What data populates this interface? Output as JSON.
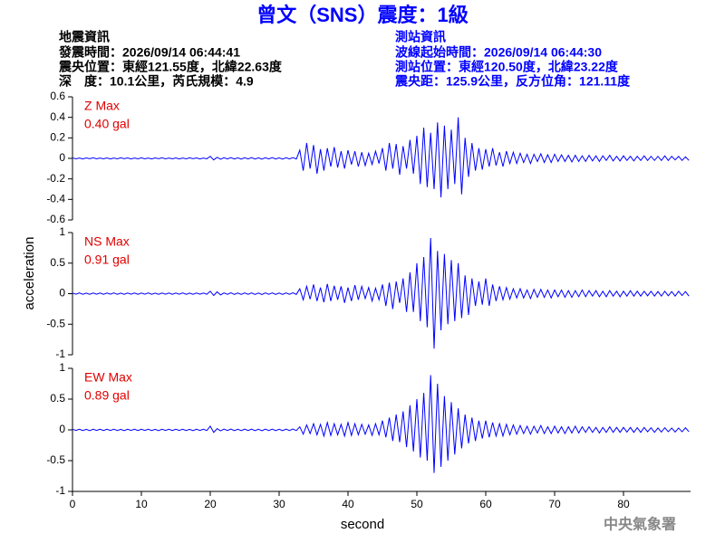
{
  "header": {
    "title": "曾文（SNS）震度：1級",
    "left": [
      "地震資訊",
      "發震時間：2026/09/14 06:44:41",
      "震央位置：東經121.55度，北緯22.63度",
      "深　度：10.1公里，芮氏規模：4.9"
    ],
    "right": [
      "測站資訊",
      "波線起始時間：2026/09/14 06:44:30",
      "測站位置：東經120.50度，北緯23.22度",
      "震央距：125.9公里，反方位角：121.11度"
    ],
    "footer": "中央氣象署"
  },
  "chart_data": {
    "type": "line",
    "color": "#0000ff",
    "xlabel": "second",
    "ylabel": "acceleration",
    "xlim": [
      0,
      90
    ],
    "xticks": [
      0,
      10,
      20,
      30,
      40,
      50,
      60,
      70,
      80
    ],
    "x": [
      0,
      0.5,
      1,
      1.5,
      2,
      2.5,
      3,
      3.5,
      4,
      4.5,
      5,
      5.5,
      6,
      6.5,
      7,
      7.5,
      8,
      8.5,
      9,
      9.5,
      10,
      10.5,
      11,
      11.5,
      12,
      12.5,
      13,
      13.5,
      14,
      14.5,
      15,
      15.5,
      16,
      16.5,
      17,
      17.5,
      18,
      18.5,
      19,
      19.5,
      20,
      20.5,
      21,
      21.5,
      22,
      22.5,
      23,
      23.5,
      24,
      24.5,
      25,
      25.5,
      26,
      26.5,
      27,
      27.5,
      28,
      28.5,
      29,
      29.5,
      30,
      30.5,
      31,
      31.5,
      32,
      32.5,
      33,
      33.5,
      34,
      34.5,
      35,
      35.5,
      36,
      36.5,
      37,
      37.5,
      38,
      38.5,
      39,
      39.5,
      40,
      40.5,
      41,
      41.5,
      42,
      42.5,
      43,
      43.5,
      44,
      44.5,
      45,
      45.5,
      46,
      46.5,
      47,
      47.5,
      48,
      48.5,
      49,
      49.5,
      50,
      50.5,
      51,
      51.5,
      52,
      52.5,
      53,
      53.5,
      54,
      54.5,
      55,
      55.5,
      56,
      56.5,
      57,
      57.5,
      58,
      58.5,
      59,
      59.5,
      60,
      60.5,
      61,
      61.5,
      62,
      62.5,
      63,
      63.5,
      64,
      64.5,
      65,
      65.5,
      66,
      66.5,
      67,
      67.5,
      68,
      68.5,
      69,
      69.5,
      70,
      70.5,
      71,
      71.5,
      72,
      72.5,
      73,
      73.5,
      74,
      74.5,
      75,
      75.5,
      76,
      76.5,
      77,
      77.5,
      78,
      78.5,
      79,
      79.5,
      80,
      80.5,
      81,
      81.5,
      82,
      82.5,
      83,
      83.5,
      84,
      84.5,
      85,
      85.5,
      86,
      86.5,
      87,
      87.5,
      88,
      88.5,
      89,
      89.5
    ],
    "series": [
      {
        "name": "Z Max",
        "max": "0.40 gal",
        "ylim": [
          -0.6,
          0.6
        ],
        "yticks": [
          -0.6,
          -0.4,
          -0.2,
          0,
          0.2,
          0.4,
          0.6
        ],
        "values": [
          0.005,
          -0.004,
          0.003,
          -0.005,
          0.004,
          -0.003,
          0.005,
          -0.004,
          0.003,
          -0.004,
          0.004,
          -0.005,
          0.003,
          -0.004,
          0.005,
          -0.003,
          0.004,
          -0.005,
          0.003,
          -0.004,
          0.005,
          -0.004,
          0.003,
          -0.005,
          0.004,
          -0.003,
          0.005,
          -0.004,
          0.003,
          -0.004,
          0.004,
          -0.005,
          0.003,
          -0.004,
          0.005,
          -0.003,
          0.004,
          -0.005,
          0.003,
          -0.004,
          0.02,
          -0.015,
          0.01,
          -0.008,
          0.006,
          -0.005,
          0.007,
          -0.006,
          0.005,
          -0.007,
          0.006,
          -0.005,
          0.007,
          -0.006,
          0.005,
          -0.007,
          0.006,
          -0.005,
          0.007,
          -0.006,
          0.005,
          -0.007,
          0.006,
          -0.005,
          0.007,
          -0.006,
          0.08,
          -0.12,
          0.15,
          -0.1,
          0.13,
          -0.15,
          0.09,
          -0.12,
          0.1,
          -0.08,
          0.11,
          -0.09,
          0.07,
          -0.1,
          0.08,
          -0.06,
          0.07,
          -0.08,
          0.06,
          -0.07,
          0.05,
          -0.06,
          0.07,
          -0.05,
          0.1,
          -0.12,
          0.15,
          -0.1,
          0.14,
          -0.16,
          0.12,
          -0.1,
          0.18,
          -0.15,
          0.22,
          -0.25,
          0.3,
          -0.28,
          0.25,
          -0.3,
          0.35,
          -0.38,
          0.32,
          -0.3,
          0.28,
          -0.25,
          0.4,
          -0.35,
          0.2,
          -0.18,
          0.15,
          -0.12,
          0.1,
          -0.11,
          0.09,
          -0.08,
          0.1,
          -0.07,
          0.06,
          -0.08,
          0.07,
          -0.05,
          0.06,
          -0.05,
          0.05,
          -0.04,
          0.04,
          -0.05,
          0.04,
          -0.03,
          0.045,
          -0.04,
          0.035,
          -0.04,
          0.04,
          -0.03,
          0.035,
          -0.03,
          0.03,
          -0.035,
          0.03,
          -0.03,
          0.025,
          -0.03,
          0.03,
          -0.025,
          0.025,
          -0.03,
          0.025,
          -0.02,
          0.03,
          -0.025,
          0.02,
          -0.025,
          0.025,
          -0.02,
          0.02,
          -0.025,
          0.02,
          -0.02,
          0.025,
          -0.02,
          0.02,
          -0.02,
          0.02,
          -0.02,
          0.025,
          -0.02,
          0.02,
          -0.015,
          0.02,
          -0.02,
          0.015,
          -0.02
        ]
      },
      {
        "name": "NS Max",
        "max": "0.91 gal",
        "ylim": [
          -1,
          1
        ],
        "yticks": [
          -1,
          -0.5,
          0,
          0.5,
          1
        ],
        "values": [
          0.01,
          -0.008,
          0.012,
          -0.01,
          0.009,
          -0.011,
          0.01,
          -0.009,
          0.011,
          -0.01,
          0.01,
          -0.008,
          0.012,
          -0.01,
          0.009,
          -0.011,
          0.01,
          -0.009,
          0.011,
          -0.01,
          0.01,
          -0.008,
          0.012,
          -0.01,
          0.009,
          -0.011,
          0.01,
          -0.009,
          0.011,
          -0.01,
          0.01,
          -0.008,
          0.012,
          -0.01,
          0.009,
          -0.011,
          0.01,
          -0.009,
          0.011,
          -0.01,
          0.04,
          -0.03,
          0.03,
          -0.02,
          0.012,
          -0.01,
          0.014,
          -0.012,
          0.01,
          -0.013,
          0.012,
          -0.011,
          0.013,
          -0.012,
          0.01,
          -0.014,
          0.012,
          -0.01,
          0.013,
          -0.012,
          0.011,
          -0.013,
          0.012,
          -0.01,
          0.014,
          -0.012,
          0.08,
          -0.1,
          0.12,
          -0.09,
          0.15,
          -0.12,
          0.1,
          -0.14,
          0.16,
          -0.12,
          0.13,
          -0.1,
          0.12,
          -0.15,
          0.1,
          -0.12,
          0.14,
          -0.1,
          0.12,
          -0.08,
          0.1,
          -0.12,
          0.09,
          -0.1,
          0.15,
          -0.2,
          0.18,
          -0.25,
          0.2,
          -0.15,
          0.25,
          -0.3,
          0.35,
          -0.3,
          0.5,
          -0.45,
          0.6,
          -0.55,
          0.91,
          -0.9,
          0.7,
          -0.6,
          0.65,
          -0.5,
          0.55,
          -0.45,
          0.5,
          -0.4,
          0.3,
          -0.35,
          0.25,
          -0.2,
          0.2,
          -0.18,
          0.25,
          -0.2,
          0.15,
          -0.12,
          0.12,
          -0.1,
          0.1,
          -0.09,
          0.08,
          -0.07,
          0.08,
          -0.07,
          0.06,
          -0.08,
          0.07,
          -0.06,
          0.07,
          -0.06,
          0.06,
          -0.07,
          0.06,
          -0.05,
          0.06,
          -0.06,
          0.05,
          -0.06,
          0.05,
          -0.05,
          0.06,
          -0.05,
          0.05,
          -0.04,
          0.05,
          -0.05,
          0.04,
          -0.05,
          0.05,
          -0.04,
          0.04,
          -0.05,
          0.04,
          -0.04,
          0.05,
          -0.04,
          0.04,
          -0.04,
          0.04,
          -0.035,
          0.04,
          -0.04,
          0.035,
          -0.04,
          0.04,
          -0.035,
          0.035,
          -0.04,
          0.04,
          -0.03,
          0.035,
          -0.04
        ]
      },
      {
        "name": "EW Max",
        "max": "0.89 gal",
        "ylim": [
          -1,
          1
        ],
        "yticks": [
          -1,
          -0.5,
          0,
          0.5,
          1
        ],
        "values": [
          0.01,
          -0.009,
          0.011,
          -0.01,
          0.008,
          -0.012,
          0.01,
          -0.009,
          0.011,
          -0.01,
          0.01,
          -0.009,
          0.011,
          -0.01,
          0.008,
          -0.012,
          0.01,
          -0.009,
          0.011,
          -0.01,
          0.01,
          -0.009,
          0.011,
          -0.01,
          0.008,
          -0.012,
          0.01,
          -0.009,
          0.011,
          -0.01,
          0.01,
          -0.009,
          0.011,
          -0.01,
          0.008,
          -0.012,
          0.01,
          -0.009,
          0.011,
          -0.01,
          0.06,
          -0.04,
          0.02,
          -0.015,
          0.012,
          -0.01,
          0.014,
          -0.012,
          0.01,
          -0.013,
          0.012,
          -0.011,
          0.013,
          -0.012,
          0.01,
          -0.014,
          0.012,
          -0.01,
          0.013,
          -0.012,
          0.011,
          -0.013,
          0.012,
          -0.01,
          0.014,
          -0.012,
          0.05,
          -0.07,
          0.08,
          -0.06,
          0.1,
          -0.08,
          0.09,
          -0.1,
          0.12,
          -0.09,
          0.1,
          -0.08,
          0.09,
          -0.1,
          0.12,
          -0.09,
          0.1,
          -0.08,
          0.09,
          -0.07,
          0.08,
          -0.09,
          0.1,
          -0.08,
          0.15,
          -0.12,
          0.2,
          -0.18,
          0.25,
          -0.2,
          0.3,
          -0.28,
          0.4,
          -0.35,
          0.5,
          -0.45,
          0.6,
          -0.5,
          0.89,
          -0.7,
          0.75,
          -0.6,
          0.55,
          -0.5,
          0.45,
          -0.4,
          0.35,
          -0.3,
          0.25,
          -0.22,
          0.2,
          -0.18,
          0.15,
          -0.14,
          0.15,
          -0.12,
          0.12,
          -0.1,
          0.1,
          -0.1,
          0.09,
          -0.08,
          0.08,
          -0.07,
          0.07,
          -0.06,
          0.06,
          -0.07,
          0.06,
          -0.05,
          0.07,
          -0.06,
          0.05,
          -0.06,
          0.06,
          -0.05,
          0.05,
          -0.06,
          0.05,
          -0.05,
          0.06,
          -0.05,
          0.05,
          -0.04,
          0.05,
          -0.04,
          0.04,
          -0.05,
          0.04,
          -0.04,
          0.05,
          -0.04,
          0.04,
          -0.04,
          0.04,
          -0.035,
          0.04,
          -0.04,
          0.035,
          -0.04,
          0.04,
          -0.03,
          0.035,
          -0.04,
          0.03,
          -0.035,
          0.035,
          -0.03,
          0.03,
          -0.035,
          0.03,
          -0.03,
          0.035,
          -0.03
        ]
      }
    ]
  }
}
